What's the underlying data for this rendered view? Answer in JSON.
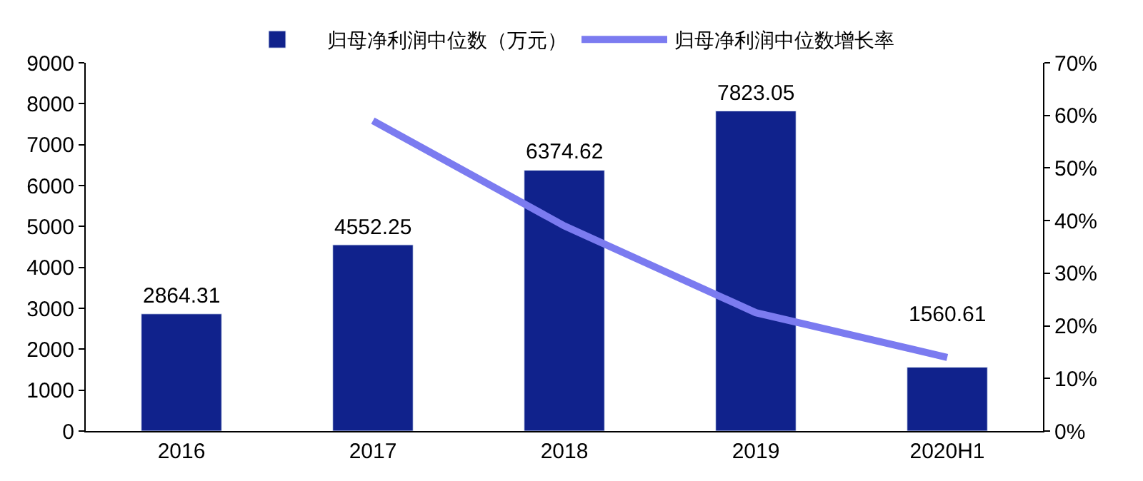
{
  "chart_data": {
    "type": "bar",
    "categories": [
      "2016",
      "2017",
      "2018",
      "2019",
      "2020H1"
    ],
    "series": [
      {
        "name": "归母净利润中位数（万元）",
        "color": "#10228c",
        "values": [
          2864.31,
          4552.25,
          6374.62,
          7823.05,
          1560.61
        ],
        "data_labels": true
      },
      {
        "name": "归母净利润中位数增长率",
        "type": "line",
        "axis": "y2",
        "color": "#7b7bf0",
        "values": [
          null,
          59,
          39,
          22.5,
          14
        ]
      }
    ],
    "ylim": [
      0,
      9000
    ],
    "yticks": [
      0,
      1000,
      2000,
      3000,
      4000,
      5000,
      6000,
      7000,
      8000,
      9000
    ],
    "y2lim": [
      0,
      70
    ],
    "y2ticks": [
      {
        "value": 0,
        "label": "0%"
      },
      {
        "value": 10,
        "label": "10%"
      },
      {
        "value": 20,
        "label": "20%"
      },
      {
        "value": 30,
        "label": "30%"
      },
      {
        "value": 40,
        "label": "40%"
      },
      {
        "value": 50,
        "label": "50%"
      },
      {
        "value": 60,
        "label": "60%"
      },
      {
        "value": 70,
        "label": "70%"
      }
    ],
    "legend": "top",
    "marker": "none",
    "line_style": "solid"
  }
}
